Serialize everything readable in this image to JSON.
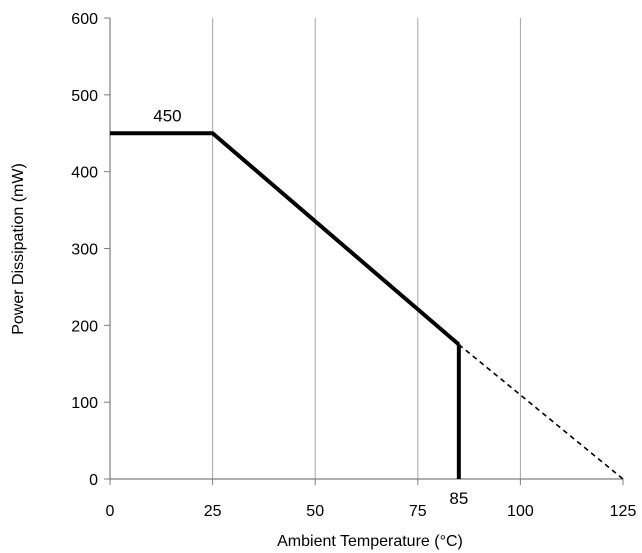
{
  "chart_data": {
    "type": "line",
    "title": "",
    "xlabel": "Ambient Temperature (°C)",
    "ylabel": "Power Dissipation (mW)",
    "xlim": [
      0,
      125
    ],
    "ylim": [
      0,
      600
    ],
    "xticks": [
      0,
      25,
      50,
      75,
      100,
      125
    ],
    "yticks": [
      0,
      100,
      200,
      300,
      400,
      500,
      600
    ],
    "grid": "vertical",
    "legend": "none",
    "series": [
      {
        "style": "solid-thick",
        "color": "#000000",
        "points": [
          [
            0,
            450
          ],
          [
            25,
            450
          ],
          [
            85,
            175
          ]
        ]
      },
      {
        "style": "solid-thick",
        "color": "#000000",
        "points": [
          [
            85,
            175
          ],
          [
            85,
            0
          ]
        ]
      },
      {
        "style": "dashed",
        "color": "#000000",
        "points": [
          [
            85,
            175
          ],
          [
            125,
            0
          ]
        ]
      }
    ],
    "annotations": [
      {
        "text": "450",
        "x": 14,
        "y": 450
      },
      {
        "text": "85",
        "x": 85,
        "y": 0,
        "position": "below-axis"
      }
    ]
  }
}
